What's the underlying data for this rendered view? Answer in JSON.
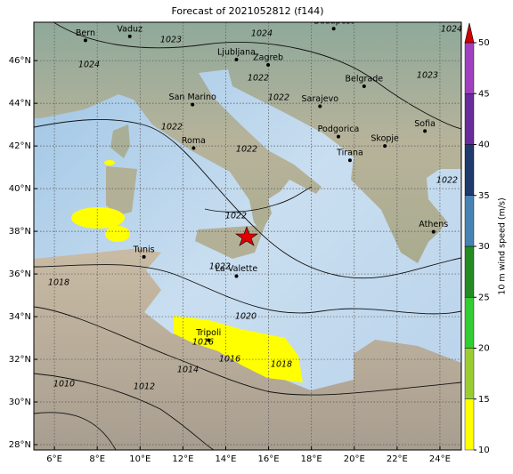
{
  "title": "Forecast of 2021052812 (f144)",
  "map": {
    "lon_range": [
      5.04,
      25
    ],
    "lat_range": [
      27.75,
      47.8
    ],
    "xticks": [
      {
        "value": 6,
        "label": "6°E"
      },
      {
        "value": 8,
        "label": "8°E"
      },
      {
        "value": 10,
        "label": "10°E"
      },
      {
        "value": 12,
        "label": "12°E"
      },
      {
        "value": 14,
        "label": "14°E"
      },
      {
        "value": 16,
        "label": "16°E"
      },
      {
        "value": 18,
        "label": "18°E"
      },
      {
        "value": 20,
        "label": "20°E"
      },
      {
        "value": 22,
        "label": "22°E"
      },
      {
        "value": 24,
        "label": "24°E"
      }
    ],
    "yticks": [
      {
        "value": 28,
        "label": "28°N"
      },
      {
        "value": 30,
        "label": "30°N"
      },
      {
        "value": 32,
        "label": "32°N"
      },
      {
        "value": 34,
        "label": "34°N"
      },
      {
        "value": 36,
        "label": "36°N"
      },
      {
        "value": 38,
        "label": "38°N"
      },
      {
        "value": 40,
        "label": "40°N"
      },
      {
        "value": 42,
        "label": "42°N"
      },
      {
        "value": 44,
        "label": "44°N"
      },
      {
        "value": 46,
        "label": "46°N"
      }
    ],
    "grid": true
  },
  "cities": [
    {
      "name": "Bern",
      "lon": 7.45,
      "lat": 46.95
    },
    {
      "name": "Vaduz",
      "lon": 9.52,
      "lat": 47.14
    },
    {
      "name": "Budapest",
      "lon": 19.04,
      "lat": 47.5
    },
    {
      "name": "Ljubljana",
      "lon": 14.5,
      "lat": 46.05
    },
    {
      "name": "Zagreb",
      "lon": 15.98,
      "lat": 45.8
    },
    {
      "name": "Belgrade",
      "lon": 20.46,
      "lat": 44.8
    },
    {
      "name": "San Marino",
      "lon": 12.45,
      "lat": 43.94
    },
    {
      "name": "Sarajevo",
      "lon": 18.4,
      "lat": 43.86
    },
    {
      "name": "Roma",
      "lon": 12.5,
      "lat": 41.9
    },
    {
      "name": "Podgorica",
      "lon": 19.26,
      "lat": 42.44
    },
    {
      "name": "Skopje",
      "lon": 21.43,
      "lat": 42.0
    },
    {
      "name": "Sofia",
      "lon": 23.3,
      "lat": 42.7
    },
    {
      "name": "Tirana",
      "lon": 19.8,
      "lat": 41.33
    },
    {
      "name": "Tunis",
      "lon": 10.18,
      "lat": 36.8
    },
    {
      "name": "La Valette",
      "lon": 14.5,
      "lat": 35.9
    },
    {
      "name": "Tripoli",
      "lon": 13.2,
      "lat": 32.9
    },
    {
      "name": "Athens",
      "lon": 23.7,
      "lat": 37.98
    }
  ],
  "contour_labels": [
    1024,
    1023,
    1024,
    1024,
    1022,
    1022,
    1023,
    1022,
    1022,
    1022,
    1022,
    1018,
    1020,
    1022,
    1014,
    1016,
    1018,
    1012,
    1010,
    1016
  ],
  "colorbar": {
    "label": "10 m wind speed (m/s)",
    "ticks": [
      10,
      15,
      20,
      25,
      30,
      35,
      40,
      45,
      50
    ],
    "colors": [
      "#ffff00",
      "#9acd32",
      "#32cd32",
      "#228b22",
      "#4682b4",
      "#1f3a6e",
      "#6a2c9a",
      "#a040c0"
    ],
    "extend_color": "#d00000"
  }
}
